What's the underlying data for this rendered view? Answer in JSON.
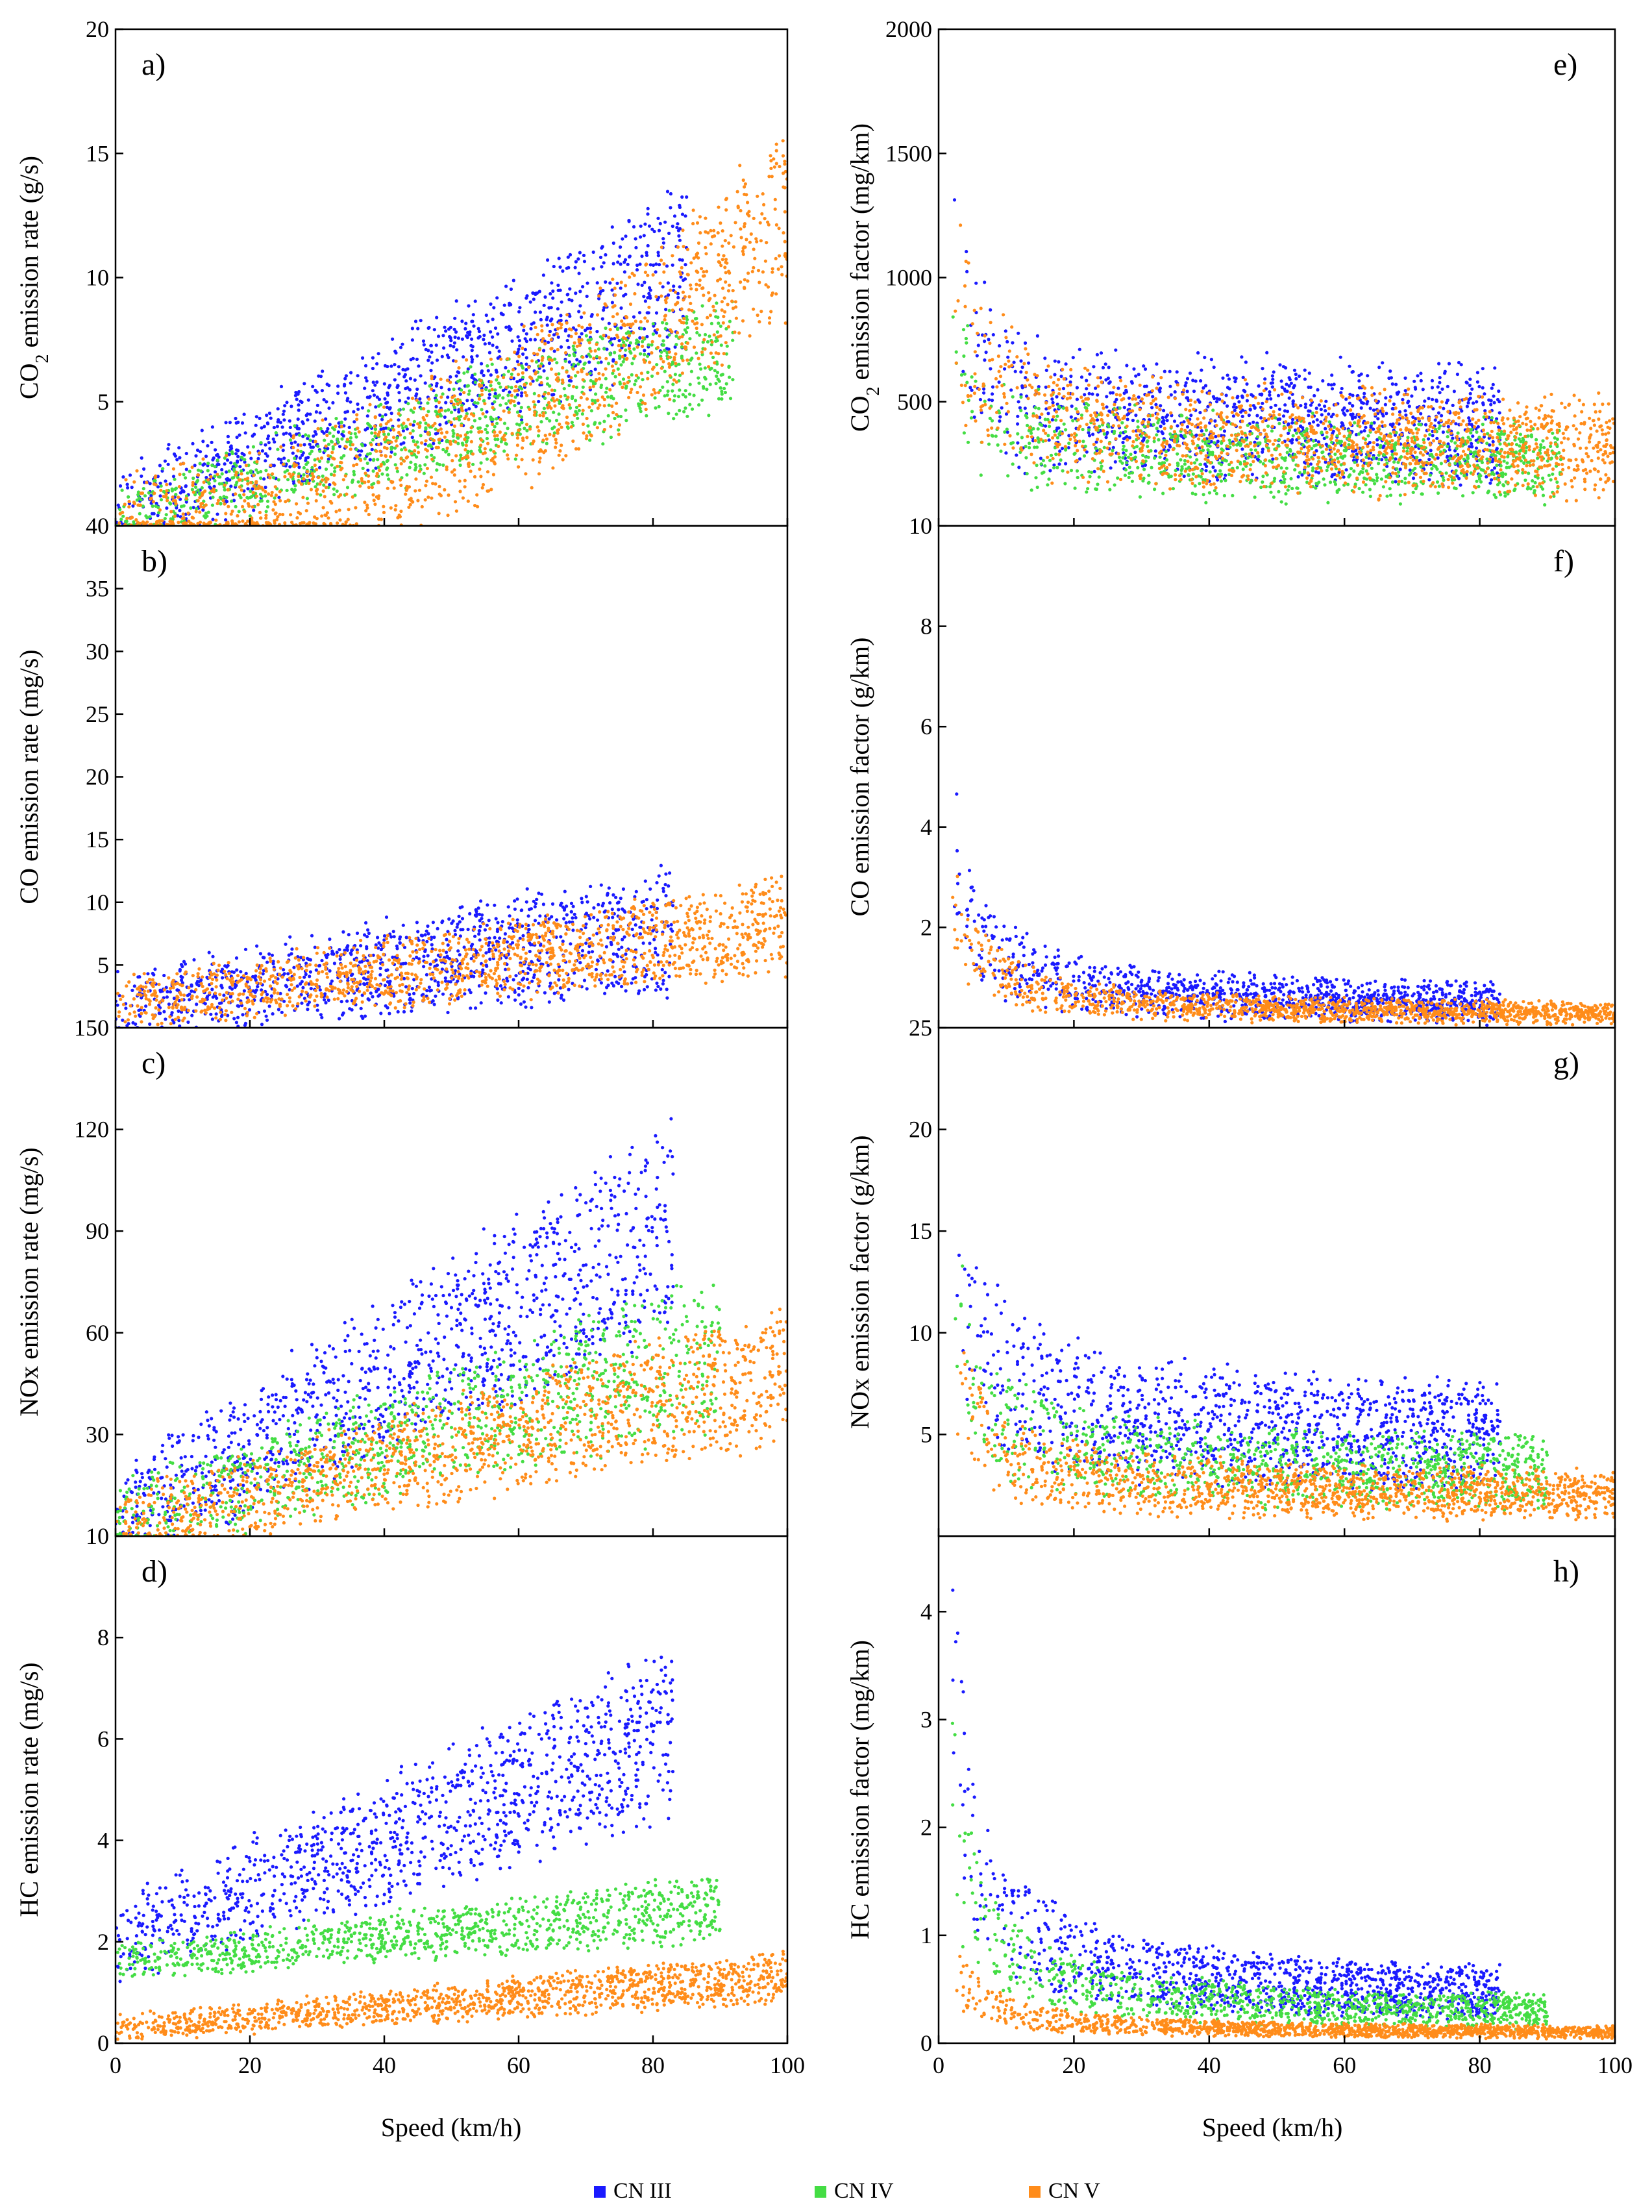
{
  "legend": [
    {
      "name": "CN III",
      "color": "#1a1aff"
    },
    {
      "name": "CN IV",
      "color": "#44dd44"
    },
    {
      "name": "CN V",
      "color": "#ff8c1a"
    }
  ],
  "x_axis_label": "Speed (km/h)",
  "chart_data": [
    {
      "id": "a",
      "type": "scatter",
      "label": "a)",
      "ylabel_html": "CO<tspan baseline-shift=\"sub\" font-size=\"70%\">2</tspan> emission rate (g/s)",
      "ylabel_text": "CO2 emission rate (g/s)",
      "xlim": [
        0,
        100
      ],
      "ylim": [
        0,
        20
      ],
      "xticks": [
        0,
        20,
        40,
        60,
        80,
        100
      ],
      "yticks": [
        5,
        10,
        15,
        20
      ],
      "ytick_labels": [
        "5",
        "10",
        "15",
        "20"
      ],
      "series": [
        {
          "name": "CN III",
          "shape": "rate",
          "vmax": 85,
          "base": 0.4,
          "slope": 0.115,
          "exp": 1.0,
          "spread": 3.0,
          "floor": 0.0,
          "bias": 0.0,
          "n": 1100,
          "seed": 11
        },
        {
          "name": "CN IV",
          "shape": "rate",
          "vmax": 92,
          "base": 0.3,
          "slope": 0.075,
          "exp": 1.0,
          "spread": 2.2,
          "floor": 0.0,
          "bias": 0.0,
          "n": 1000,
          "seed": 12
        },
        {
          "name": "CN V",
          "shape": "rate",
          "vmax": 100,
          "base": 0.3,
          "slope": 0.0012,
          "exp": 2.0,
          "spread": 3.5,
          "floor": 0.0,
          "bias": 0.0,
          "n": 1300,
          "seed": 13
        }
      ]
    },
    {
      "id": "b",
      "type": "scatter",
      "label": "b)",
      "ylabel_text": "CO emission rate (mg/s)",
      "xlim": [
        0,
        100
      ],
      "ylim": [
        0,
        40
      ],
      "xticks": [
        0,
        20,
        40,
        60,
        80,
        100
      ],
      "yticks": [
        5,
        10,
        15,
        20,
        25,
        30,
        35,
        40
      ],
      "ytick_labels": [
        "5",
        "10",
        "15",
        "20",
        "25",
        "30",
        "35",
        "40"
      ],
      "series": [
        {
          "name": "CN III",
          "shape": "rate",
          "vmax": 83,
          "base": 2.0,
          "slope": 0.07,
          "exp": 1.0,
          "spread": 4.5,
          "floor": 0.0,
          "bias": 0.0,
          "n": 1100,
          "seed": 21
        },
        {
          "name": "CN V",
          "shape": "rate",
          "vmax": 100,
          "base": 2.0,
          "slope": 0.06,
          "exp": 1.0,
          "spread": 3.5,
          "floor": 0.0,
          "bias": 0.0,
          "n": 1300,
          "seed": 22
        }
      ]
    },
    {
      "id": "c",
      "type": "scatter",
      "label": "c)",
      "ylabel_text": "NOx emission rate (mg/s)",
      "xlim": [
        0,
        100
      ],
      "ylim": [
        0,
        150
      ],
      "xticks": [
        0,
        20,
        40,
        60,
        80,
        100
      ],
      "yticks": [
        30,
        60,
        90,
        120,
        150
      ],
      "ytick_labels": [
        "30",
        "60",
        "90",
        "120",
        "150"
      ],
      "series": [
        {
          "name": "CN III",
          "shape": "rate",
          "vmax": 83,
          "base": 5.0,
          "slope": 1.05,
          "exp": 1.0,
          "spread": 28,
          "floor": 0.0,
          "bias": 0.0,
          "n": 1100,
          "seed": 31
        },
        {
          "name": "CN IV",
          "shape": "rate",
          "vmax": 90,
          "base": 5.0,
          "slope": 0.55,
          "exp": 1.0,
          "spread": 20,
          "floor": 0.0,
          "bias": 0.0,
          "n": 1000,
          "seed": 32
        },
        {
          "name": "CN V",
          "shape": "rate",
          "vmax": 100,
          "base": 3.0,
          "slope": 0.45,
          "exp": 1.0,
          "spread": 18,
          "floor": 0.0,
          "bias": 0.0,
          "n": 1300,
          "seed": 33
        }
      ]
    },
    {
      "id": "d",
      "type": "scatter",
      "label": "d)",
      "ylabel_text": "HC emission rate (mg/s)",
      "xlim": [
        0,
        100
      ],
      "ylim": [
        0,
        10
      ],
      "xticks": [
        0,
        20,
        40,
        60,
        80,
        100
      ],
      "yticks": [
        0,
        2,
        4,
        6,
        8,
        10
      ],
      "ytick_labels": [
        "0",
        "2",
        "4",
        "6",
        "8",
        "10"
      ],
      "series": [
        {
          "name": "CN III",
          "shape": "rate",
          "vmax": 83,
          "base": 2.0,
          "slope": 0.05,
          "exp": 1.0,
          "spread": 1.5,
          "floor": 0.0,
          "bias": 0.0,
          "n": 1100,
          "seed": 41
        },
        {
          "name": "CN IV",
          "shape": "rate",
          "vmax": 90,
          "base": 1.6,
          "slope": 0.012,
          "exp": 1.0,
          "spread": 0.6,
          "floor": 0.0,
          "bias": 0.0,
          "n": 1000,
          "seed": 42
        },
        {
          "name": "CN V",
          "shape": "rate",
          "vmax": 100,
          "base": 0.3,
          "slope": 0.01,
          "exp": 1.0,
          "spread": 0.45,
          "floor": 0.0,
          "bias": 0.0,
          "n": 1300,
          "seed": 43
        }
      ]
    },
    {
      "id": "e",
      "type": "scatter",
      "label": "e)",
      "ylabel_html": "CO<tspan baseline-shift=\"sub\" font-size=\"70%\">2</tspan> emission factor (mg/km)",
      "ylabel_text": "CO2 emission factor (mg/km)",
      "xlim": [
        0,
        100
      ],
      "ylim": [
        0,
        2000
      ],
      "xticks": [
        0,
        20,
        40,
        60,
        80,
        100
      ],
      "yticks": [
        500,
        1000,
        1500,
        2000
      ],
      "ytick_labels": [
        "500",
        "1000",
        "1500",
        "2000"
      ],
      "series": [
        {
          "name": "CN III",
          "shape": "factor",
          "vmax": 83,
          "base": 0.0,
          "slope": 0.0,
          "exp": 1.0,
          "spread": 180,
          "floor": 380,
          "bias": 2200,
          "n": 1100,
          "seed": 51
        },
        {
          "name": "CN IV",
          "shape": "factor",
          "vmax": 92,
          "base": 0.0,
          "slope": 0.0,
          "exp": 1.0,
          "spread": 130,
          "floor": 240,
          "bias": 1800,
          "n": 1000,
          "seed": 52
        },
        {
          "name": "CN V",
          "shape": "factor",
          "vmax": 100,
          "base": 0.0,
          "slope": 0.0,
          "exp": 1.0,
          "spread": 170,
          "floor": 300,
          "bias": 2600,
          "n": 1300,
          "seed": 53
        }
      ]
    },
    {
      "id": "f",
      "type": "scatter",
      "label": "f)",
      "ylabel_text": "CO emission factor (g/km)",
      "xlim": [
        0,
        100
      ],
      "ylim": [
        0,
        10
      ],
      "xticks": [
        0,
        20,
        40,
        60,
        80,
        100
      ],
      "yticks": [
        2,
        4,
        6,
        8,
        10
      ],
      "ytick_labels": [
        "2",
        "4",
        "6",
        "8",
        "10"
      ],
      "series": [
        {
          "name": "CN III",
          "shape": "factor",
          "vmax": 83,
          "base": 0.0,
          "slope": 0.0,
          "exp": 1.0,
          "spread": 0.5,
          "floor": 0.35,
          "bias": 12,
          "n": 1100,
          "seed": 61
        },
        {
          "name": "CN V",
          "shape": "factor",
          "vmax": 100,
          "base": 0.0,
          "slope": 0.0,
          "exp": 1.0,
          "spread": 0.25,
          "floor": 0.2,
          "bias": 9,
          "n": 1300,
          "seed": 62
        }
      ]
    },
    {
      "id": "g",
      "type": "scatter",
      "label": "g)",
      "ylabel_text": "NOx emission factor (g/km)",
      "xlim": [
        0,
        100
      ],
      "ylim": [
        0,
        25
      ],
      "xticks": [
        0,
        20,
        40,
        60,
        80,
        100
      ],
      "yticks": [
        5,
        10,
        15,
        20,
        25
      ],
      "ytick_labels": [
        "5",
        "10",
        "15",
        "20",
        "25"
      ],
      "series": [
        {
          "name": "CN III",
          "shape": "factor",
          "vmax": 83,
          "base": 0.0,
          "slope": 0.0,
          "exp": 1.0,
          "spread": 1.4,
          "floor": 4.5,
          "bias": 40,
          "n": 1100,
          "seed": 71
        },
        {
          "name": "CN IV",
          "shape": "factor",
          "vmax": 90,
          "base": 0.0,
          "slope": 0.0,
          "exp": 1.0,
          "spread": 1.2,
          "floor": 2.8,
          "bias": 30,
          "n": 1000,
          "seed": 72
        },
        {
          "name": "CN V",
          "shape": "factor",
          "vmax": 100,
          "base": 0.0,
          "slope": 0.0,
          "exp": 1.0,
          "spread": 1.0,
          "floor": 1.8,
          "bias": 25,
          "n": 1300,
          "seed": 73
        }
      ]
    },
    {
      "id": "h",
      "type": "scatter",
      "label": "h)",
      "ylabel_text": "HC emission factor (mg/km)",
      "xlim": [
        0,
        100
      ],
      "ylim": [
        0,
        4.7
      ],
      "xticks": [
        0,
        20,
        40,
        60,
        80,
        100
      ],
      "yticks": [
        0,
        1,
        2,
        3,
        4
      ],
      "ytick_labels": [
        "0",
        "1",
        "2",
        "3",
        "4"
      ],
      "series": [
        {
          "name": "CN III",
          "shape": "factor",
          "vmax": 83,
          "base": 0.0,
          "slope": 0.0,
          "exp": 1.0,
          "spread": 0.12,
          "floor": 0.35,
          "bias": 10,
          "n": 1100,
          "seed": 81
        },
        {
          "name": "CN IV",
          "shape": "factor",
          "vmax": 90,
          "base": 0.0,
          "slope": 0.0,
          "exp": 1.0,
          "spread": 0.08,
          "floor": 0.22,
          "bias": 7,
          "n": 1000,
          "seed": 82
        },
        {
          "name": "CN V",
          "shape": "factor",
          "vmax": 100,
          "base": 0.0,
          "slope": 0.0,
          "exp": 1.0,
          "spread": 0.04,
          "floor": 0.08,
          "bias": 2.5,
          "n": 1300,
          "seed": 83
        }
      ]
    }
  ]
}
